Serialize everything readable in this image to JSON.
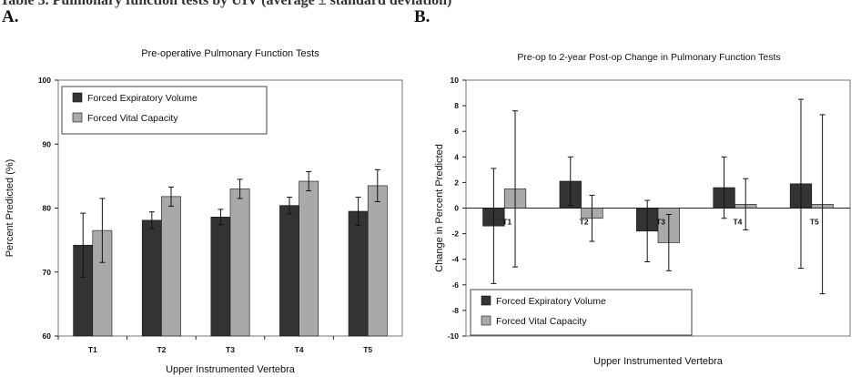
{
  "header_text": "Table 3. Pulmonary function tests by UIV (average ± standard deviation)",
  "panel_labels": [
    "A.",
    "B."
  ],
  "chart_data": [
    {
      "type": "bar",
      "title": "Pre-operative Pulmonary Function Tests",
      "xlabel": "Upper Instrumented Vertebra",
      "ylabel": "Percent Predicted (%)",
      "ylim": [
        60,
        100
      ],
      "yticks": [
        "60",
        "70",
        "80",
        "90",
        "100"
      ],
      "categories": [
        "T1",
        "T2",
        "T3",
        "T4",
        "T5"
      ],
      "series": [
        {
          "name": "Forced Expiratory Volume",
          "color": "#333333",
          "values": [
            74.2,
            78.1,
            78.6,
            80.4,
            79.5
          ],
          "errors": [
            5.0,
            1.3,
            1.2,
            1.3,
            2.2
          ]
        },
        {
          "name": "Forced Vital Capacity",
          "color": "#a9a9a9",
          "values": [
            76.5,
            81.8,
            83.0,
            84.2,
            83.5
          ],
          "errors": [
            5.0,
            1.5,
            1.5,
            1.5,
            2.5
          ]
        }
      ],
      "legend": "top-left",
      "grid": false
    },
    {
      "type": "bar",
      "title": "Pre-op to 2-year Post-op Change in Pulmonary Function Tests",
      "xlabel": "Upper Instrumented Vertebra",
      "ylabel": "Change in Percent Predicted",
      "ylim": [
        -10,
        10
      ],
      "yticks": [
        "-10",
        "-8",
        "-6",
        "-4",
        "-2",
        "0",
        "2",
        "4",
        "6",
        "8",
        "10"
      ],
      "categories": [
        "T1",
        "T2",
        "T3",
        "T4",
        "T5"
      ],
      "series": [
        {
          "name": "Forced Expiratory Volume",
          "color": "#333333",
          "values": [
            -1.4,
            2.1,
            -1.8,
            1.6,
            1.9
          ],
          "errors": [
            4.5,
            1.9,
            2.4,
            2.4,
            6.6
          ]
        },
        {
          "name": "Forced Vital Capacity",
          "color": "#a9a9a9",
          "values": [
            1.5,
            -0.8,
            -2.7,
            0.3,
            0.3
          ],
          "errors": [
            6.1,
            1.8,
            2.2,
            2.0,
            7.0
          ]
        }
      ],
      "legend": "bottom-left",
      "grid": false
    }
  ]
}
